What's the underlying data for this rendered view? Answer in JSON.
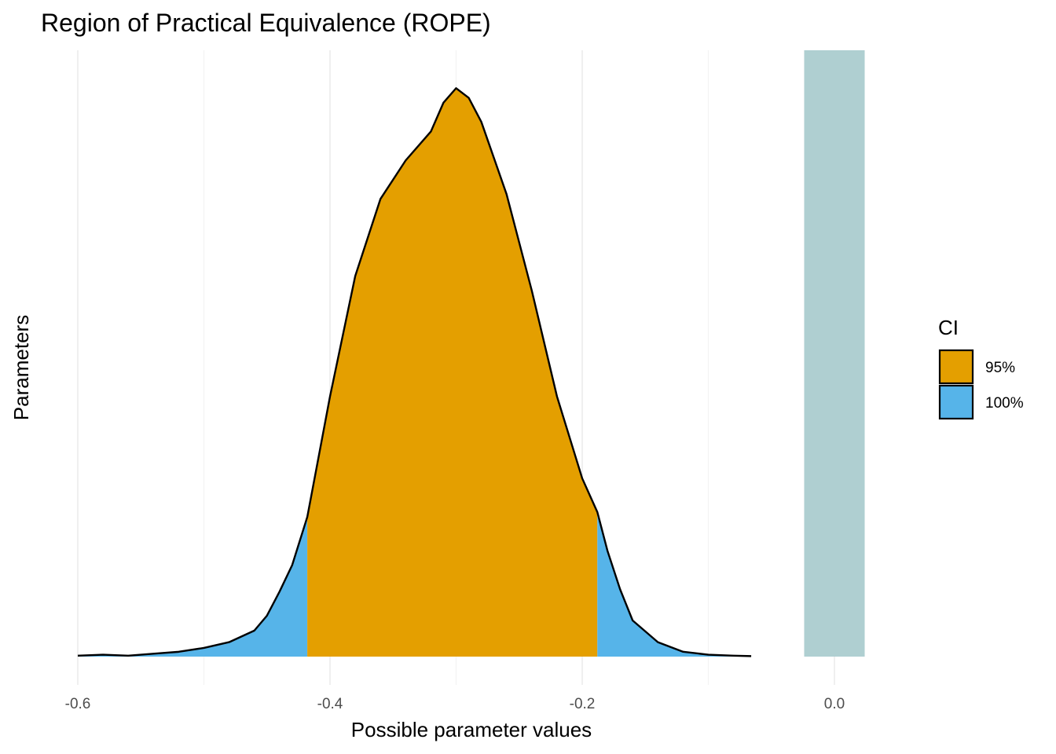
{
  "chart_data": {
    "type": "area",
    "title": "Region of Practical Equivalence (ROPE)",
    "xlabel": "Possible parameter values",
    "ylabel": "Parameters",
    "xlim": [
      -0.6,
      0.0
    ],
    "x_ticks": [
      -0.6,
      -0.4,
      -0.2,
      0.0
    ],
    "x_tick_labels": [
      "-0.6",
      "-0.4",
      "-0.2",
      "0.0"
    ],
    "grid": true,
    "rope": {
      "low": -0.024,
      "high": 0.024,
      "color": "#afcfd1"
    },
    "ci_95": {
      "low": -0.418,
      "high": -0.188
    },
    "series": [
      {
        "name": "95%",
        "color": "#e49f00"
      },
      {
        "name": "100%",
        "color": "#56b4e9"
      }
    ],
    "density": {
      "x": [
        -0.6,
        -0.58,
        -0.56,
        -0.54,
        -0.52,
        -0.5,
        -0.48,
        -0.46,
        -0.45,
        -0.44,
        -0.43,
        -0.418,
        -0.4,
        -0.38,
        -0.36,
        -0.34,
        -0.32,
        -0.31,
        -0.3,
        -0.29,
        -0.28,
        -0.26,
        -0.24,
        -0.22,
        -0.2,
        -0.188,
        -0.18,
        -0.17,
        -0.16,
        -0.14,
        -0.12,
        -0.1,
        -0.08,
        -0.066
      ],
      "y": [
        0.002,
        0.004,
        0.002,
        0.006,
        0.01,
        0.018,
        0.03,
        0.054,
        0.085,
        0.135,
        0.19,
        0.29,
        0.54,
        0.79,
        0.95,
        1.03,
        1.09,
        1.15,
        1.18,
        1.16,
        1.11,
        0.96,
        0.76,
        0.54,
        0.37,
        0.3,
        0.22,
        0.14,
        0.075,
        0.03,
        0.01,
        0.004,
        0.002,
        0.001
      ]
    },
    "legend": {
      "title": "CI",
      "position": "right",
      "entries": [
        "95%",
        "100%"
      ]
    }
  }
}
